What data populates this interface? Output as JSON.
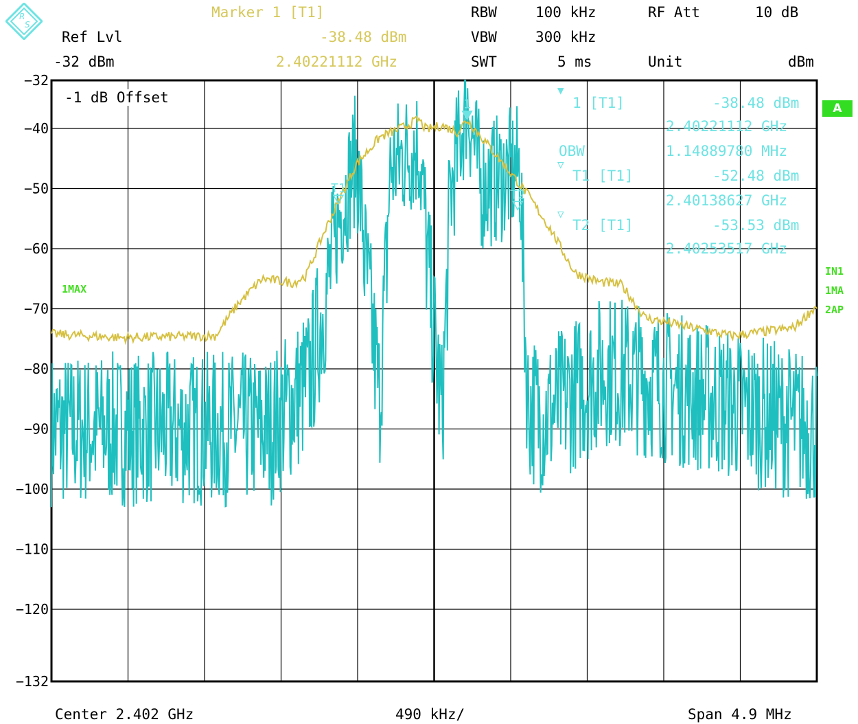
{
  "header": {
    "marker_title": "Marker 1 [T1]",
    "ref_lvl_label": "Ref Lvl",
    "ref_lvl_value": "-32 dBm",
    "marker_level": "-38.48 dBm",
    "marker_freq": "2.40221112 GHz",
    "rbw_label": "RBW",
    "rbw_value": "100 kHz",
    "vbw_label": "VBW",
    "vbw_value": "300 kHz",
    "swt_label": "SWT",
    "swt_value": "5 ms",
    "rfatt_label": "RF Att",
    "rfatt_value": "10 dB",
    "unit_label": "Unit",
    "unit_value": "dBm"
  },
  "offset_label": "-1 dB Offset",
  "marker_info": {
    "m1_label": "1 [T1]",
    "m1_level": "-38.48 dBm",
    "m1_freq": "2.40221112 GHz",
    "obw_label": "OBW",
    "obw_value": "1.14889780 MHz",
    "t1_label": "T1 [T1]",
    "t1_level": "-52.48 dBm",
    "t1_freq": "2.40138627 GHz",
    "t2_label": "T2 [T1]",
    "t2_level": "-53.53 dBm",
    "t2_freq": "2.40253517 GHz"
  },
  "side_labels": {
    "trace_left": "1MAX",
    "right_1": "IN1",
    "right_2": "1MA",
    "right_3": "2AP",
    "badge": "A"
  },
  "plot_markers": {
    "m1": "1",
    "t1": "T1",
    "t2": "T2"
  },
  "footer": {
    "center": "Center 2.402 GHz",
    "div": "490 kHz/",
    "span": "Span 4.9 MHz"
  },
  "colors": {
    "max_hold_trace": "#d6c040",
    "clear_write_trace": "#1fbfbf",
    "annotation_cyan": "#6ee3e3",
    "annotation_yellow": "#d6c85a",
    "status_green": "#33dd22",
    "logo": "#6ee3e3"
  },
  "chart_data": {
    "type": "line",
    "title": "",
    "xlabel": "",
    "ylabel": "",
    "xlim": [
      2.39955,
      2.40445
    ],
    "ylim": [
      -132,
      -32
    ],
    "x_unit": "GHz",
    "y_unit": "dBm",
    "y_ticks": [
      -32,
      -40,
      -50,
      -60,
      -70,
      -80,
      -90,
      -100,
      -110,
      -120,
      -132
    ],
    "grid": true,
    "series": [
      {
        "name": "1MAX",
        "color": "#d6c040",
        "x": [
          2.39955,
          2.4,
          2.4006,
          2.40075,
          2.4009,
          2.4011,
          2.40118,
          2.4013,
          2.4015,
          2.40165,
          2.4018,
          2.4019,
          2.40195,
          2.40205,
          2.40215,
          2.40221,
          2.4024,
          2.4026,
          2.40275,
          2.4029,
          2.40305,
          2.4032,
          2.40335,
          2.4039,
          2.4043,
          2.40445
        ],
        "values": [
          -74.2,
          -74.8,
          -74.5,
          -69,
          -65,
          -65.7,
          -64.5,
          -57,
          -46,
          -41.5,
          -39.8,
          -38.5,
          -40.2,
          -39.5,
          -40.6,
          -38.5,
          -44.5,
          -51,
          -57,
          -64,
          -65.5,
          -66,
          -71.5,
          -74.5,
          -73.2,
          -69.5
        ]
      },
      {
        "name": "2AP",
        "color": "#1fbfbf",
        "x": [
          2.39955,
          2.40095,
          2.4012,
          2.40135,
          2.4015,
          2.40165,
          2.40172,
          2.4018,
          2.4019,
          2.40205,
          2.4021,
          2.40221,
          2.4023,
          2.40255,
          2.4026,
          2.4027,
          2.4031,
          2.40445
        ],
        "values": [
          -90,
          -90,
          -82,
          -62,
          -48,
          -85,
          -50,
          -48,
          -46,
          -88,
          -55,
          -38.5,
          -53,
          -50,
          -86,
          -88,
          -80,
          -90
        ]
      }
    ]
  }
}
